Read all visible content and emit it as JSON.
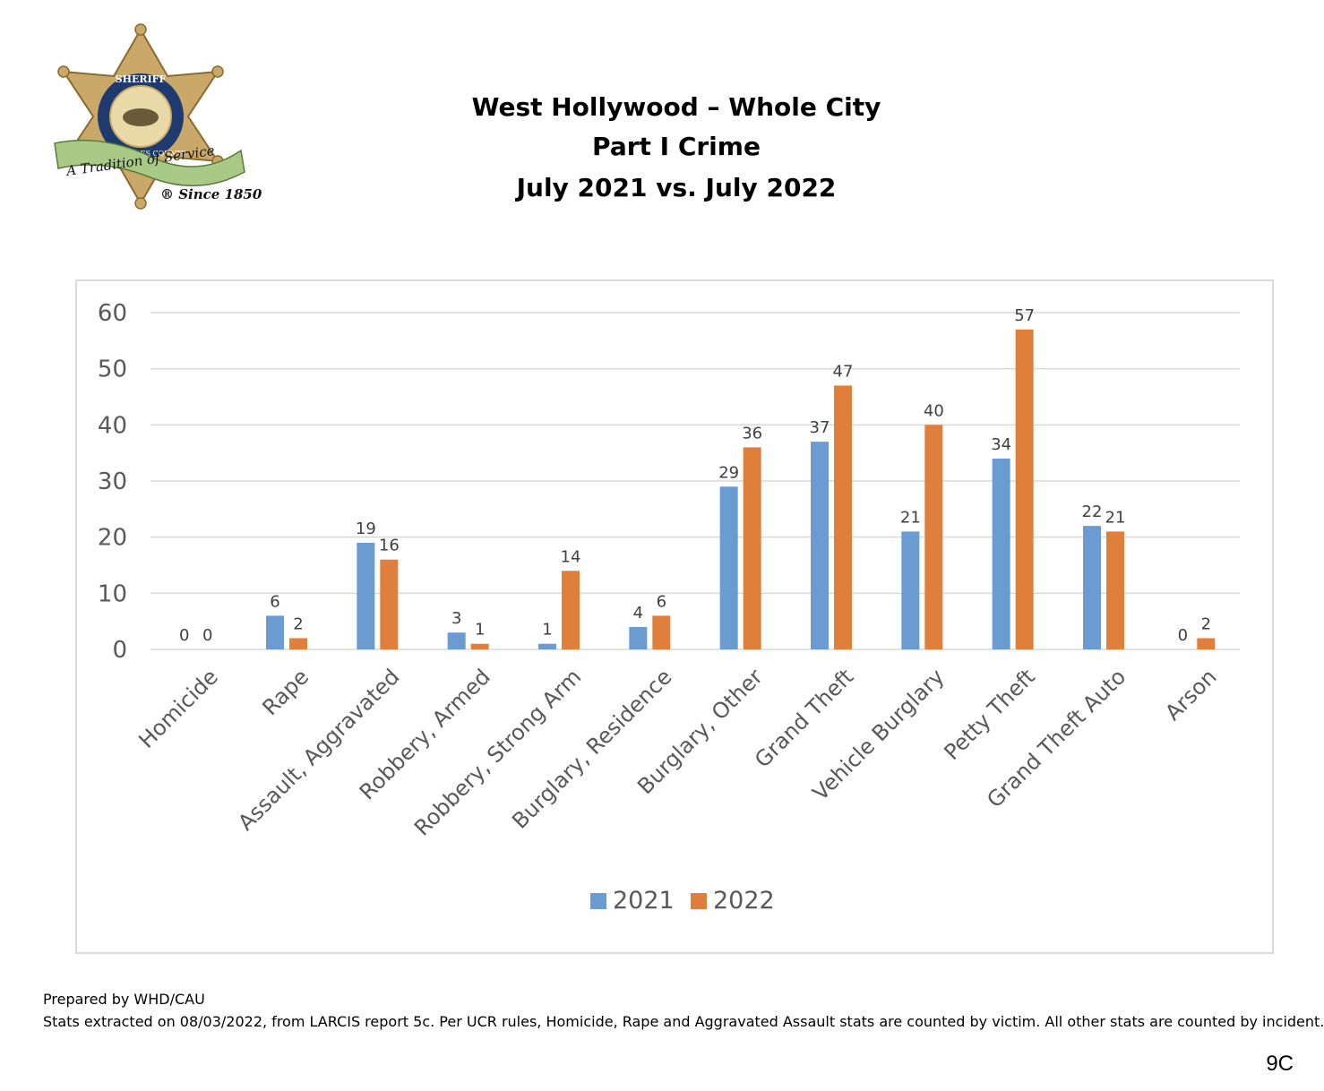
{
  "logo": {
    "seal_top_text": "SHERIFF",
    "seal_ring_text": "LOS ANGELES COUNTY",
    "banner_text": "A Tradition of Service",
    "since_text": "® Since 1850",
    "icon": "sheriff-badge-icon"
  },
  "title": {
    "line1": "West Hollywood – Whole City",
    "line2": "Part I Crime",
    "line3": "July 2021 vs. July 2022"
  },
  "chart_data": {
    "type": "bar",
    "title": "",
    "xlabel": "",
    "ylabel": "",
    "ylim": [
      0,
      60
    ],
    "yticks": [
      0,
      10,
      20,
      30,
      40,
      50,
      60
    ],
    "grid": true,
    "legend_position": "bottom",
    "categories": [
      "Homicide",
      "Rape",
      "Assault, Aggravated",
      "Robbery, Armed",
      "Robbery, Strong Arm",
      "Burglary, Residence",
      "Burglary, Other",
      "Grand Theft",
      "Vehicle Burglary",
      "Petty Theft",
      "Grand Theft Auto",
      "Arson"
    ],
    "series": [
      {
        "name": "2021",
        "color": "#6a9bd1",
        "values": [
          0,
          6,
          19,
          3,
          1,
          4,
          29,
          37,
          21,
          34,
          22,
          0
        ]
      },
      {
        "name": "2022",
        "color": "#e07e3c",
        "values": [
          0,
          2,
          16,
          1,
          14,
          6,
          36,
          47,
          40,
          57,
          21,
          2
        ]
      }
    ]
  },
  "footer": {
    "prepared_by": "Prepared by WHD/CAU",
    "note": "Stats extracted on 08/03/2022, from LARCIS report 5c. Per UCR rules, Homicide, Rape and Aggravated Assault stats are counted by victim. All other stats are counted by incident.",
    "page_number": "9C"
  }
}
